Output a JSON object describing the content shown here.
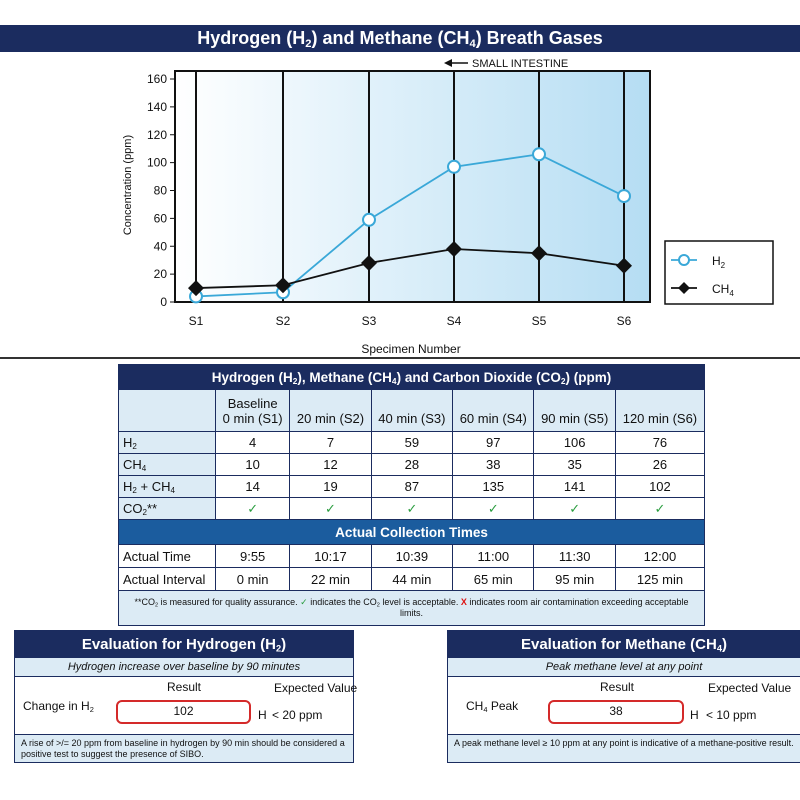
{
  "title": {
    "pre": "Hydrogen (H",
    "sub1": "2",
    "mid": ") and Methane (CH",
    "sub2": "4",
    "post": ") Breath Gases"
  },
  "chart_data": {
    "type": "line",
    "title": "Hydrogen (H2) and Methane (CH4) Breath Gases",
    "annotation": "SMALL INTESTINE",
    "xlabel": "Specimen Number",
    "ylabel": "Concentration (ppm)",
    "categories": [
      "S1",
      "S2",
      "S3",
      "S4",
      "S5",
      "S6"
    ],
    "ylim": [
      0,
      160
    ],
    "yticks": [
      0,
      20,
      40,
      60,
      80,
      100,
      120,
      140,
      160
    ],
    "series": [
      {
        "name": "H2",
        "label": "H",
        "sub": "2",
        "color": "#3aa8d8",
        "marker": "circle",
        "values": [
          4,
          7,
          59,
          97,
          106,
          76
        ]
      },
      {
        "name": "CH4",
        "label": "CH",
        "sub": "4",
        "color": "#111111",
        "marker": "diamond",
        "values": [
          10,
          12,
          28,
          38,
          35,
          26
        ]
      }
    ],
    "legend_position": "right"
  },
  "table": {
    "title": {
      "t1": "Hydrogen (H",
      "s1": "2",
      "t2": "), Methane (CH",
      "s2": "4",
      "t3": ") and Carbon Dioxide (CO",
      "s3": "2",
      "t4": ") (ppm)"
    },
    "columns": [
      {
        "line1": "Baseline",
        "line2": "0 min (S1)"
      },
      {
        "line1": "",
        "line2": "20 min (S2)"
      },
      {
        "line1": "",
        "line2": "40 min (S3)"
      },
      {
        "line1": "",
        "line2": "60 min (S4)"
      },
      {
        "line1": "",
        "line2": "90 min (S5)"
      },
      {
        "line1": "",
        "line2": "120 min (S6)"
      }
    ],
    "rows": [
      {
        "label": "H",
        "sub": "2",
        "post": "",
        "values": [
          "4",
          "7",
          "59",
          "97",
          "106",
          "76"
        ]
      },
      {
        "label": "CH",
        "sub": "4",
        "post": "",
        "values": [
          "10",
          "12",
          "28",
          "38",
          "35",
          "26"
        ]
      },
      {
        "label": "H",
        "sub": "2",
        "post": " + CH",
        "sub2": "4",
        "values": [
          "14",
          "19",
          "87",
          "135",
          "141",
          "102"
        ]
      }
    ],
    "co2_row": {
      "label": "CO",
      "sub": "2",
      "post": "**",
      "values": [
        "✓",
        "✓",
        "✓",
        "✓",
        "✓",
        "✓"
      ]
    },
    "collection_title": "Actual Collection Times",
    "time_rows": [
      {
        "label": "Actual Time",
        "values": [
          "9:55",
          "10:17",
          "10:39",
          "11:00",
          "11:30",
          "12:00"
        ]
      },
      {
        "label": "Actual Interval",
        "values": [
          "0 min",
          "22 min",
          "44 min",
          "65 min",
          "95 min",
          "125 min"
        ]
      }
    ],
    "note": {
      "p1": "**CO",
      "s1": "2",
      "p2": " is measured for quality assurance. ",
      "check": "✓",
      "p3": " indicates the CO",
      "s2": "2",
      "p4": " level is acceptable. ",
      "cross": "X",
      "p5": " indicates room air contamination exceeding acceptable limits."
    }
  },
  "eval_h2": {
    "title_pre": "Evaluation for Hydrogen (H",
    "title_sub": "2",
    "title_post": ")",
    "subtitle": "Hydrogen increase over baseline by 90 minutes",
    "result_header": "Result",
    "expected_header": "Expected Value",
    "row_label_pre": "Change in H",
    "row_label_sub": "2",
    "result_value": "102",
    "unit": "H",
    "expected_value": "< 20 ppm",
    "footnote": "A rise of >/= 20 ppm from baseline in hydrogen by 90 min should be considered a positive test to suggest the presence of SIBO."
  },
  "eval_ch4": {
    "title_pre": "Evaluation for Methane (CH",
    "title_sub": "4",
    "title_post": ")",
    "subtitle": "Peak methane level at any point",
    "result_header": "Result",
    "expected_header": "Expected Value",
    "row_label_pre": "CH",
    "row_label_sub": "4",
    "row_label_post": " Peak",
    "result_value": "38",
    "unit": "H",
    "expected_value": "< 10 ppm",
    "footnote": "A peak methane level ≥ 10 ppm at any point is indicative of a methane-positive result."
  }
}
